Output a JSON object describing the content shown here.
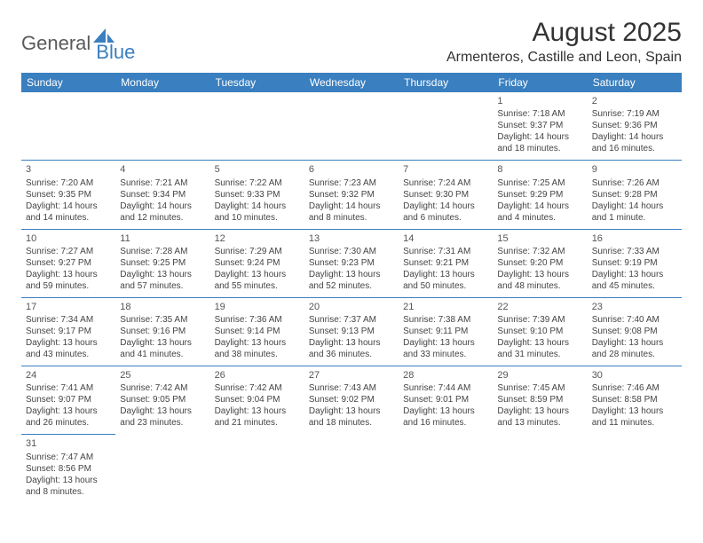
{
  "logo": {
    "part1": "General",
    "part2": "Blue"
  },
  "title": "August 2025",
  "location": "Armenteros, Castille and Leon, Spain",
  "colors": {
    "header_bg": "#3a7fbf",
    "header_fg": "#ffffff",
    "rule": "#3a7fbf"
  },
  "daynames": [
    "Sunday",
    "Monday",
    "Tuesday",
    "Wednesday",
    "Thursday",
    "Friday",
    "Saturday"
  ],
  "weeks": [
    [
      null,
      null,
      null,
      null,
      null,
      {
        "n": "1",
        "sr": "Sunrise: 7:18 AM",
        "ss": "Sunset: 9:37 PM",
        "dl1": "Daylight: 14 hours",
        "dl2": "and 18 minutes."
      },
      {
        "n": "2",
        "sr": "Sunrise: 7:19 AM",
        "ss": "Sunset: 9:36 PM",
        "dl1": "Daylight: 14 hours",
        "dl2": "and 16 minutes."
      }
    ],
    [
      {
        "n": "3",
        "sr": "Sunrise: 7:20 AM",
        "ss": "Sunset: 9:35 PM",
        "dl1": "Daylight: 14 hours",
        "dl2": "and 14 minutes."
      },
      {
        "n": "4",
        "sr": "Sunrise: 7:21 AM",
        "ss": "Sunset: 9:34 PM",
        "dl1": "Daylight: 14 hours",
        "dl2": "and 12 minutes."
      },
      {
        "n": "5",
        "sr": "Sunrise: 7:22 AM",
        "ss": "Sunset: 9:33 PM",
        "dl1": "Daylight: 14 hours",
        "dl2": "and 10 minutes."
      },
      {
        "n": "6",
        "sr": "Sunrise: 7:23 AM",
        "ss": "Sunset: 9:32 PM",
        "dl1": "Daylight: 14 hours",
        "dl2": "and 8 minutes."
      },
      {
        "n": "7",
        "sr": "Sunrise: 7:24 AM",
        "ss": "Sunset: 9:30 PM",
        "dl1": "Daylight: 14 hours",
        "dl2": "and 6 minutes."
      },
      {
        "n": "8",
        "sr": "Sunrise: 7:25 AM",
        "ss": "Sunset: 9:29 PM",
        "dl1": "Daylight: 14 hours",
        "dl2": "and 4 minutes."
      },
      {
        "n": "9",
        "sr": "Sunrise: 7:26 AM",
        "ss": "Sunset: 9:28 PM",
        "dl1": "Daylight: 14 hours",
        "dl2": "and 1 minute."
      }
    ],
    [
      {
        "n": "10",
        "sr": "Sunrise: 7:27 AM",
        "ss": "Sunset: 9:27 PM",
        "dl1": "Daylight: 13 hours",
        "dl2": "and 59 minutes."
      },
      {
        "n": "11",
        "sr": "Sunrise: 7:28 AM",
        "ss": "Sunset: 9:25 PM",
        "dl1": "Daylight: 13 hours",
        "dl2": "and 57 minutes."
      },
      {
        "n": "12",
        "sr": "Sunrise: 7:29 AM",
        "ss": "Sunset: 9:24 PM",
        "dl1": "Daylight: 13 hours",
        "dl2": "and 55 minutes."
      },
      {
        "n": "13",
        "sr": "Sunrise: 7:30 AM",
        "ss": "Sunset: 9:23 PM",
        "dl1": "Daylight: 13 hours",
        "dl2": "and 52 minutes."
      },
      {
        "n": "14",
        "sr": "Sunrise: 7:31 AM",
        "ss": "Sunset: 9:21 PM",
        "dl1": "Daylight: 13 hours",
        "dl2": "and 50 minutes."
      },
      {
        "n": "15",
        "sr": "Sunrise: 7:32 AM",
        "ss": "Sunset: 9:20 PM",
        "dl1": "Daylight: 13 hours",
        "dl2": "and 48 minutes."
      },
      {
        "n": "16",
        "sr": "Sunrise: 7:33 AM",
        "ss": "Sunset: 9:19 PM",
        "dl1": "Daylight: 13 hours",
        "dl2": "and 45 minutes."
      }
    ],
    [
      {
        "n": "17",
        "sr": "Sunrise: 7:34 AM",
        "ss": "Sunset: 9:17 PM",
        "dl1": "Daylight: 13 hours",
        "dl2": "and 43 minutes."
      },
      {
        "n": "18",
        "sr": "Sunrise: 7:35 AM",
        "ss": "Sunset: 9:16 PM",
        "dl1": "Daylight: 13 hours",
        "dl2": "and 41 minutes."
      },
      {
        "n": "19",
        "sr": "Sunrise: 7:36 AM",
        "ss": "Sunset: 9:14 PM",
        "dl1": "Daylight: 13 hours",
        "dl2": "and 38 minutes."
      },
      {
        "n": "20",
        "sr": "Sunrise: 7:37 AM",
        "ss": "Sunset: 9:13 PM",
        "dl1": "Daylight: 13 hours",
        "dl2": "and 36 minutes."
      },
      {
        "n": "21",
        "sr": "Sunrise: 7:38 AM",
        "ss": "Sunset: 9:11 PM",
        "dl1": "Daylight: 13 hours",
        "dl2": "and 33 minutes."
      },
      {
        "n": "22",
        "sr": "Sunrise: 7:39 AM",
        "ss": "Sunset: 9:10 PM",
        "dl1": "Daylight: 13 hours",
        "dl2": "and 31 minutes."
      },
      {
        "n": "23",
        "sr": "Sunrise: 7:40 AM",
        "ss": "Sunset: 9:08 PM",
        "dl1": "Daylight: 13 hours",
        "dl2": "and 28 minutes."
      }
    ],
    [
      {
        "n": "24",
        "sr": "Sunrise: 7:41 AM",
        "ss": "Sunset: 9:07 PM",
        "dl1": "Daylight: 13 hours",
        "dl2": "and 26 minutes."
      },
      {
        "n": "25",
        "sr": "Sunrise: 7:42 AM",
        "ss": "Sunset: 9:05 PM",
        "dl1": "Daylight: 13 hours",
        "dl2": "and 23 minutes."
      },
      {
        "n": "26",
        "sr": "Sunrise: 7:42 AM",
        "ss": "Sunset: 9:04 PM",
        "dl1": "Daylight: 13 hours",
        "dl2": "and 21 minutes."
      },
      {
        "n": "27",
        "sr": "Sunrise: 7:43 AM",
        "ss": "Sunset: 9:02 PM",
        "dl1": "Daylight: 13 hours",
        "dl2": "and 18 minutes."
      },
      {
        "n": "28",
        "sr": "Sunrise: 7:44 AM",
        "ss": "Sunset: 9:01 PM",
        "dl1": "Daylight: 13 hours",
        "dl2": "and 16 minutes."
      },
      {
        "n": "29",
        "sr": "Sunrise: 7:45 AM",
        "ss": "Sunset: 8:59 PM",
        "dl1": "Daylight: 13 hours",
        "dl2": "and 13 minutes."
      },
      {
        "n": "30",
        "sr": "Sunrise: 7:46 AM",
        "ss": "Sunset: 8:58 PM",
        "dl1": "Daylight: 13 hours",
        "dl2": "and 11 minutes."
      }
    ],
    [
      {
        "n": "31",
        "sr": "Sunrise: 7:47 AM",
        "ss": "Sunset: 8:56 PM",
        "dl1": "Daylight: 13 hours",
        "dl2": "and 8 minutes."
      },
      null,
      null,
      null,
      null,
      null,
      null
    ]
  ]
}
